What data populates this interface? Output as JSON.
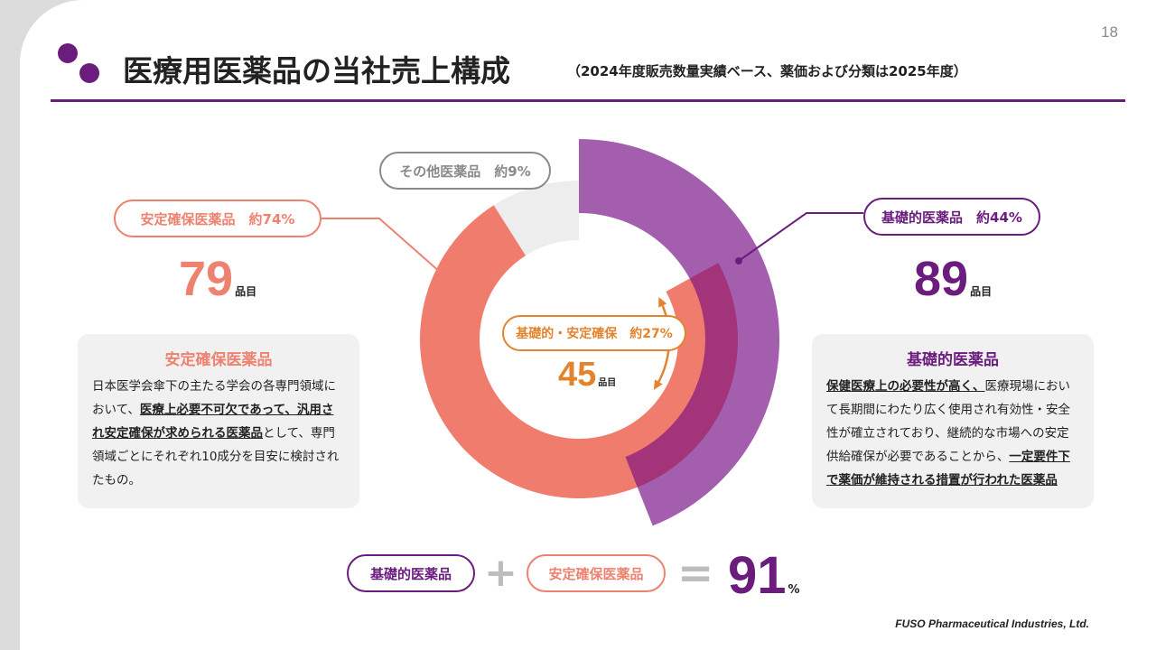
{
  "page_number": "18",
  "header": {
    "title": "医療用医薬品の当社売上構成",
    "subtitle": "（2024年度販売数量実績ベース、薬価および分類は2025年度）"
  },
  "donut": {
    "labels": {
      "other": "その他医薬品　約9%",
      "stable": "安定確保医薬品　約74%",
      "basic": "基礎的医薬品　約44%",
      "overlap": "基礎的・安定確保　約27%"
    },
    "shares_percent": {
      "other": 9,
      "stable": 74,
      "basic": 44,
      "overlap": 27
    },
    "colors": {
      "other": "#ededed",
      "stable": "#ef7c6d",
      "basic": "#9c50a7",
      "overlap": "#a32f73",
      "arrow": "#e3832e"
    }
  },
  "stable": {
    "count": "79",
    "unit": "品目",
    "box_title": "安定確保医薬品",
    "desc_1": "日本医学会傘下の主たる学会の各専門領域において、",
    "desc_u": "医療上必要不可欠であって、汎用され安定確保が求められる医薬品",
    "desc_2": "として、専門領域ごとにそれぞれ10成分を目安に検討されたもの。"
  },
  "basic": {
    "count": "89",
    "unit": "品目",
    "box_title": "基礎的医薬品",
    "desc_u1": "保健医療上の必要性が高く、",
    "desc_1": "医療現場において長期間にわたり広く使用され有効性・安全性が確立されており、継続的な市場への安定供給確保が必要であることから、",
    "desc_u2": "一定要件下で薬価が維持される措置が行われた医薬品"
  },
  "overlap": {
    "count": "45",
    "unit": "品目"
  },
  "equation": {
    "left_label": "基礎的医薬品",
    "right_label": "安定確保医薬品",
    "plus": "+",
    "equals": "=",
    "result": "91",
    "result_unit": "%"
  },
  "footer": {
    "company": "FUSO Pharmaceutical Industries, Ltd."
  },
  "colors": {
    "accent": "#6a1d7c",
    "salmon": "#ee8270",
    "purple": "#6a1d7c",
    "orange": "#e3832e"
  }
}
